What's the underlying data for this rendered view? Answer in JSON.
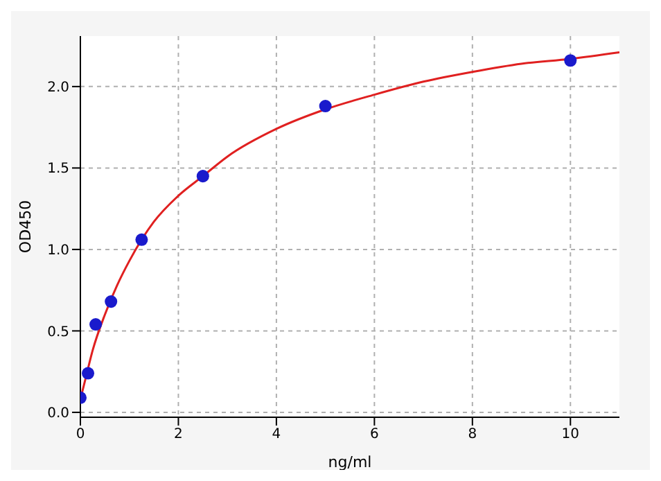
{
  "chart_data": {
    "type": "scatter",
    "xlabel": "ng/ml",
    "ylabel": "OD450",
    "xlim": [
      0,
      11
    ],
    "xticks": [
      0,
      2,
      4,
      6,
      8,
      10
    ],
    "ylim": [
      -0.03,
      2.31
    ],
    "yticks": [
      {
        "value": 0,
        "label": "0.0"
      },
      {
        "value": 0.5,
        "label": "0.5"
      },
      {
        "value": 1,
        "label": "1.0"
      },
      {
        "value": 1.5,
        "label": "1.5"
      },
      {
        "value": 2,
        "label": "2.0"
      }
    ],
    "grid": true,
    "legend": false,
    "series": [
      {
        "color": "#1a1acc",
        "marker": "circle",
        "x": [
          0,
          0.156,
          0.3125,
          0.625,
          1.25,
          2.5,
          5,
          10
        ],
        "values": [
          0.09,
          0.24,
          0.54,
          0.68,
          1.06,
          1.45,
          1.88,
          2.16
        ]
      },
      {
        "type": "line",
        "color": "#e02020",
        "marker": "none",
        "line_style": "solid",
        "x": [
          0,
          0.1,
          0.25,
          0.5,
          0.75,
          1,
          1.5,
          2,
          2.5,
          3,
          4,
          5,
          6,
          7,
          8,
          9,
          10,
          11
        ],
        "values": [
          0.08,
          0.2,
          0.38,
          0.6,
          0.78,
          0.93,
          1.17,
          1.33,
          1.45,
          1.57,
          1.74,
          1.86,
          1.95,
          2.03,
          2.09,
          2.14,
          2.17,
          2.21
        ]
      }
    ]
  }
}
